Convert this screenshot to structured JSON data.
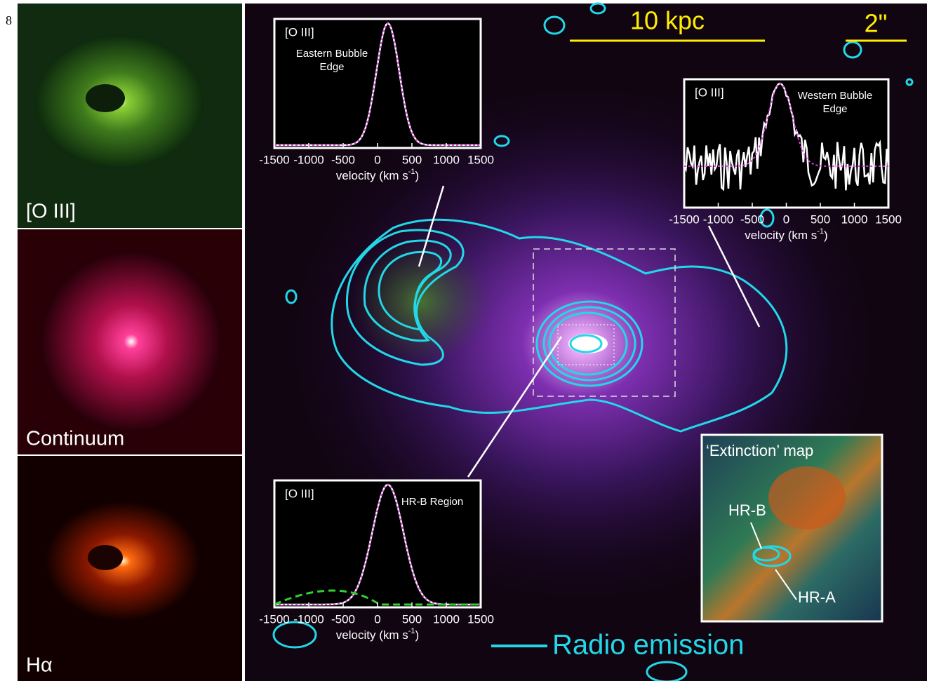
{
  "page_number": "8",
  "panels": [
    {
      "label": "[O III]"
    },
    {
      "label": "Continuum"
    },
    {
      "label": "Hα"
    }
  ],
  "main": {
    "scale_bars": [
      {
        "label": "10 kpc"
      },
      {
        "label": "2\""
      }
    ],
    "legend": "Radio emission",
    "insets": [
      {
        "line": "[O III]",
        "title": [
          "Eastern Bubble",
          "Edge"
        ],
        "xlim": [
          -1500,
          1500
        ],
        "xticks": [
          -1500,
          -1000,
          -500,
          0,
          500,
          1000,
          1500
        ],
        "xlabel": {
          "text": "velocity (km s",
          "sup": "-1",
          "end": ")"
        }
      },
      {
        "line": "[O III]",
        "title": [
          "Western Bubble",
          "Edge"
        ],
        "xlim": [
          -1500,
          1500
        ],
        "xticks": [
          -1500,
          -1000,
          -500,
          0,
          500,
          1000,
          1500
        ],
        "xlabel": {
          "text": "velocity (km s",
          "sup": "-1",
          "end": ")"
        }
      },
      {
        "line": "[O III]",
        "title": [
          "HR-B Region"
        ],
        "xlim": [
          -1500,
          1500
        ],
        "xticks": [
          -1500,
          -1000,
          -500,
          0,
          500,
          1000,
          1500
        ],
        "xlabel": {
          "text": "velocity (km s",
          "sup": "-1",
          "end": ")"
        }
      }
    ],
    "extinction": {
      "title": "‘Extinction’ map",
      "labels": [
        "HR-B",
        "HR-A"
      ]
    }
  }
}
